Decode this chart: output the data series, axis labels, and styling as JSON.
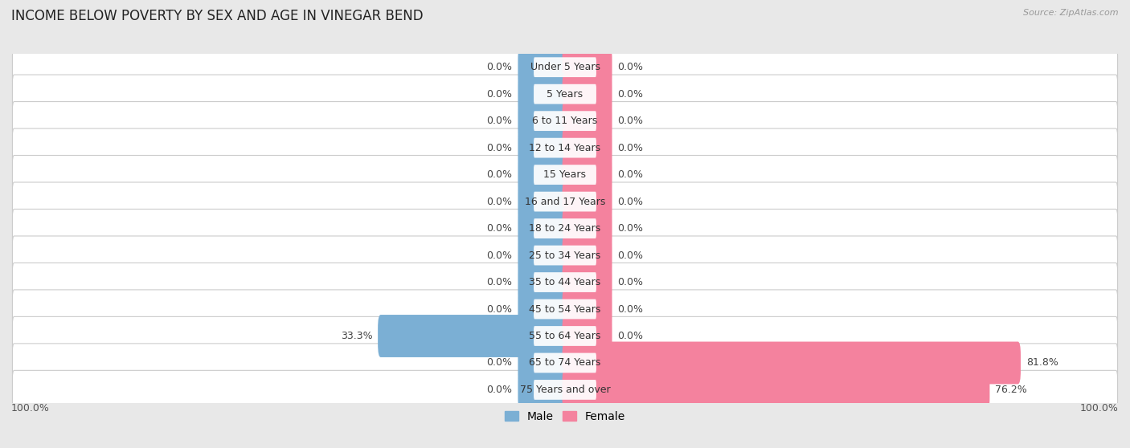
{
  "title": "INCOME BELOW POVERTY BY SEX AND AGE IN VINEGAR BEND",
  "source": "Source: ZipAtlas.com",
  "categories": [
    "Under 5 Years",
    "5 Years",
    "6 to 11 Years",
    "12 to 14 Years",
    "15 Years",
    "16 and 17 Years",
    "18 to 24 Years",
    "25 to 34 Years",
    "35 to 44 Years",
    "45 to 54 Years",
    "55 to 64 Years",
    "65 to 74 Years",
    "75 Years and over"
  ],
  "male_values": [
    0.0,
    0.0,
    0.0,
    0.0,
    0.0,
    0.0,
    0.0,
    0.0,
    0.0,
    0.0,
    33.3,
    0.0,
    0.0
  ],
  "female_values": [
    0.0,
    0.0,
    0.0,
    0.0,
    0.0,
    0.0,
    0.0,
    0.0,
    0.0,
    0.0,
    0.0,
    81.8,
    76.2
  ],
  "male_color": "#7bafd4",
  "female_color": "#f4829e",
  "male_label": "Male",
  "female_label": "Female",
  "x_min": -100,
  "x_max": 100,
  "stub_size": 8,
  "background_color": "#e8e8e8",
  "row_bg_color": "#ffffff",
  "row_border_color": "#cccccc",
  "title_fontsize": 12,
  "label_fontsize": 9,
  "value_fontsize": 9,
  "axis_label_fontsize": 9,
  "bottom_labels": [
    "100.0%",
    "100.0%"
  ]
}
